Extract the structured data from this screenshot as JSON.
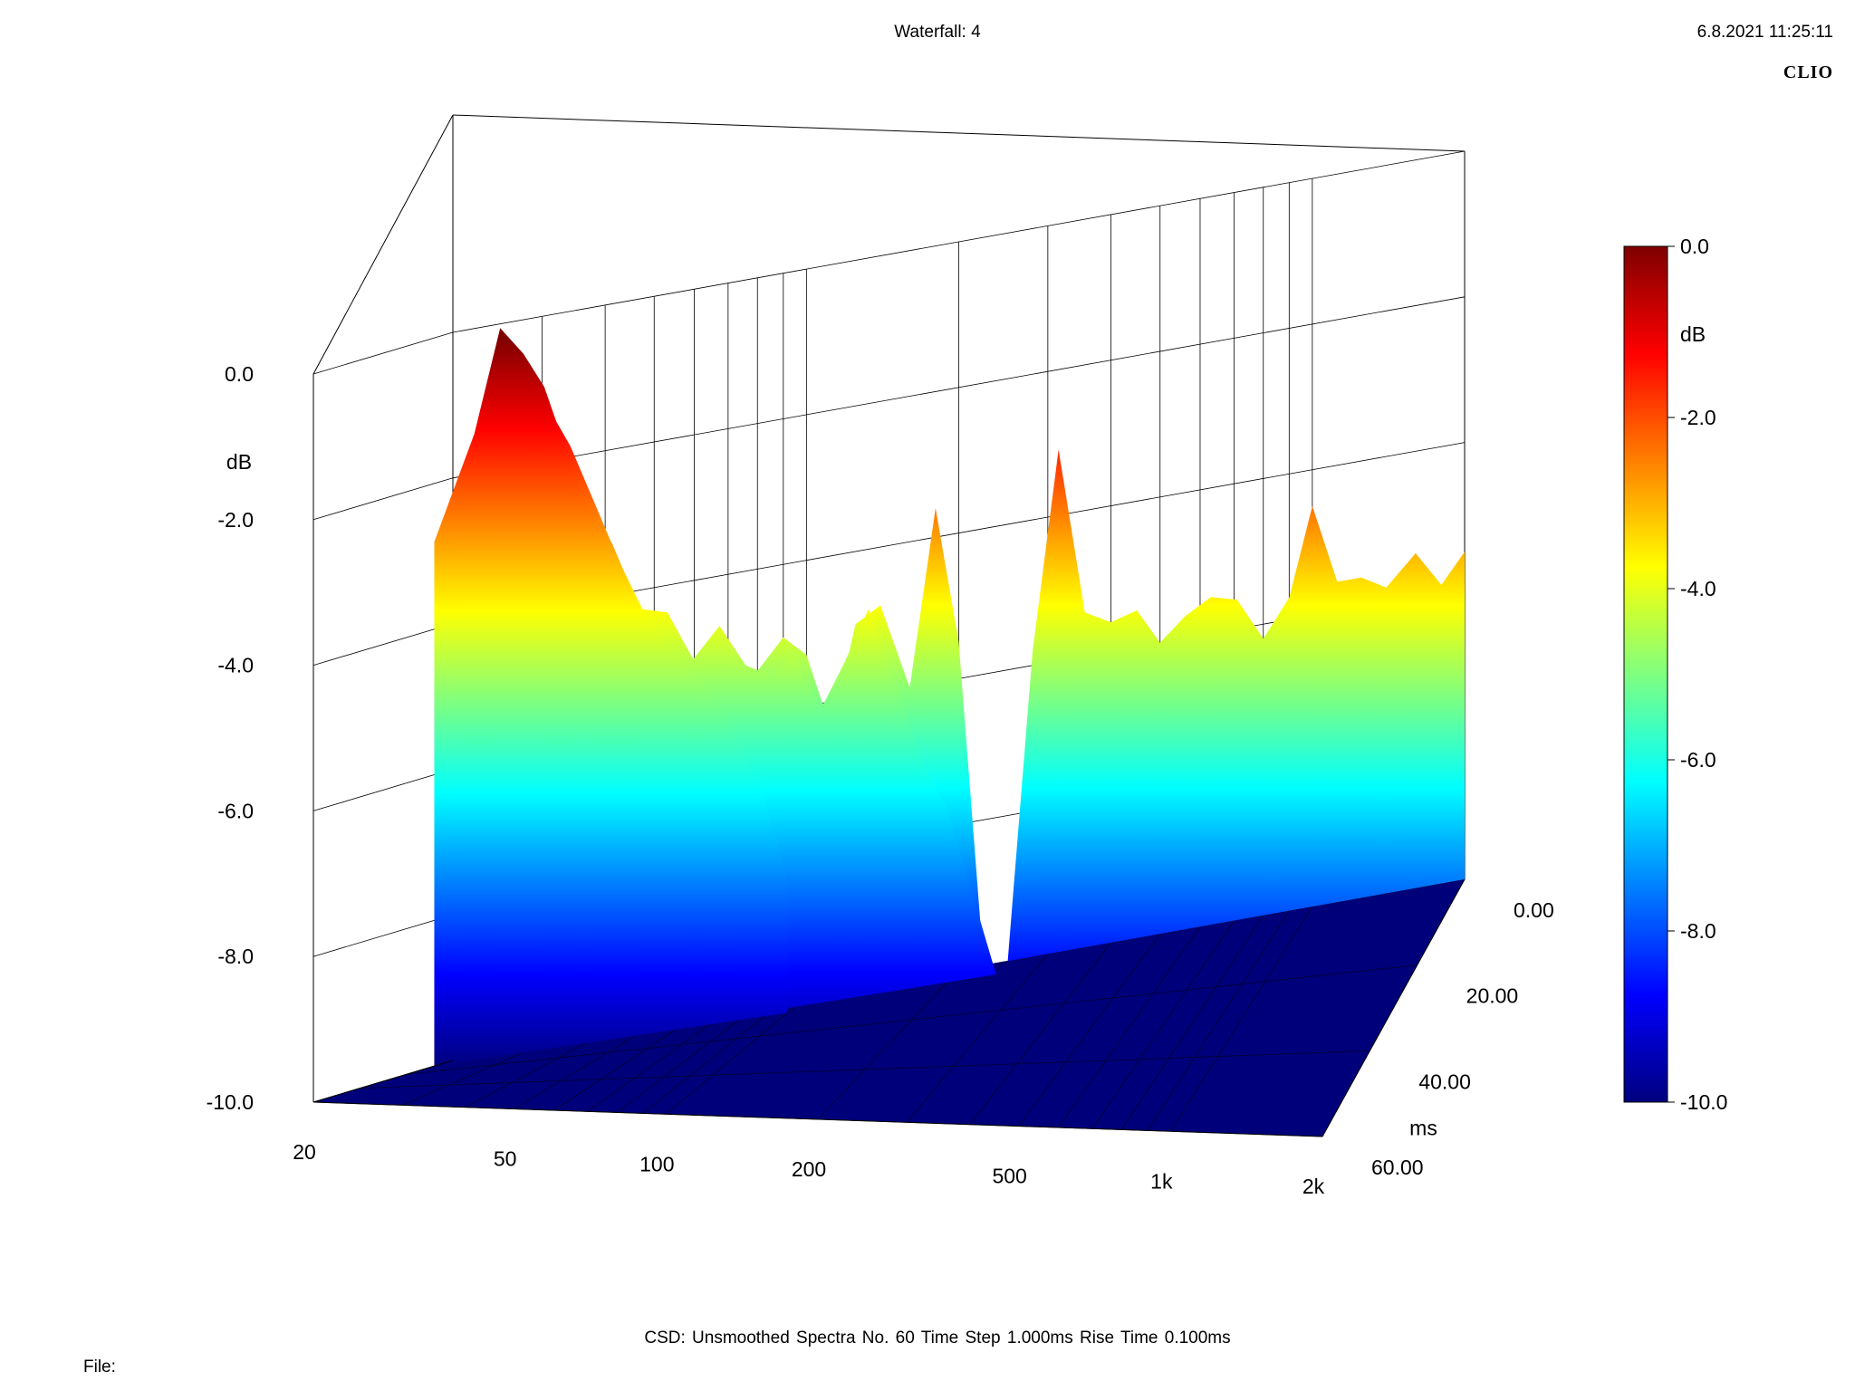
{
  "header": {
    "title": "Waterfall: 4",
    "timestamp": "6.8.2021 11:25:11",
    "brand": "CLIO"
  },
  "footer": {
    "info": "CSD:   Unsmoothed   Spectra No. 60   Time Step 1.000ms   Rise Time 0.100ms",
    "file_label": "File:"
  },
  "colors": {
    "scale": [
      "#00007f",
      "#0000ff",
      "#007fff",
      "#00ffff",
      "#7fff7f",
      "#ffff00",
      "#ff7f00",
      "#ff0000",
      "#7f0000"
    ],
    "floor": "#00007a"
  },
  "chart_data": {
    "type": "waterfall",
    "title": "Waterfall: 4",
    "subtitle": "CSD:   Unsmoothed   Spectra No. 60   Time Step 1.000ms   Rise Time 0.100ms",
    "xlabel": "",
    "ylabel": "dB",
    "zlabel": "ms",
    "x_scale": "log",
    "xlim": [
      20,
      2000
    ],
    "ylim": [
      -10,
      0
    ],
    "zlim": [
      0,
      60
    ],
    "x_ticks": [
      20,
      50,
      100,
      200,
      500,
      1000,
      2000
    ],
    "x_tick_labels": [
      "20",
      "50",
      "100",
      "200",
      "500",
      "1k",
      "2k"
    ],
    "y_ticks": [
      0,
      -2,
      -4,
      -6,
      -8,
      -10
    ],
    "y_tick_labels": [
      "0.0",
      "-2.0",
      "-4.0",
      "-6.0",
      "-8.0",
      "-10.0"
    ],
    "z_ticks": [
      0,
      20,
      40,
      60
    ],
    "z_tick_labels": [
      "0.00",
      "20.00",
      "40.00",
      "60.00"
    ],
    "colorbar": {
      "range": [
        -10,
        0
      ],
      "ticks": [
        0,
        -2,
        -4,
        -6,
        -8,
        -10
      ],
      "tick_labels": [
        "0.0",
        "-2.0",
        "-4.0",
        "-6.0",
        "-8.0",
        "-10.0"
      ],
      "label": "dB"
    },
    "grid": true,
    "series": [
      {
        "time_ms": 0,
        "freq": [
          20,
          22,
          24,
          27,
          30,
          33,
          36,
          40,
          45,
          50,
          56,
          63,
          71,
          80,
          90,
          100,
          112,
          125,
          140,
          160,
          180,
          200,
          224,
          250,
          280,
          315,
          355,
          400,
          450,
          500,
          560,
          630,
          710,
          800,
          900,
          1000,
          1120,
          1250,
          1400,
          1600,
          1800,
          2000
        ],
        "level": [
          -4.8,
          -4.6,
          -4.3,
          -3.6,
          -3.6,
          -4.0,
          -4.8,
          -5.2,
          -5.4,
          -5.8,
          -6.0,
          -5.6,
          -5.2,
          -5.4,
          -5.0,
          -5.3,
          -6.4,
          -5.0,
          -4.8,
          -6.0,
          -3.6,
          -5.5,
          -10.0,
          -10.0,
          -5.8,
          -3.1,
          -5.4,
          -5.6,
          -5.5,
          -6.0,
          -5.7,
          -5.5,
          -5.6,
          -6.2,
          -5.7,
          -4.5,
          -5.6,
          -5.6,
          -5.8,
          -5.4,
          -5.9,
          -5.5
        ]
      },
      {
        "time_ms": 5,
        "freq": [
          20,
          24,
          27,
          30,
          33,
          36,
          40,
          45,
          50,
          56,
          63,
          71,
          80,
          90,
          100,
          112,
          125,
          140,
          160,
          180,
          200,
          250,
          315
        ],
        "level": [
          -4.0,
          -3.0,
          -2.2,
          -0.8,
          -1.3,
          -1.8,
          -2.6,
          -3.5,
          -4.2,
          -4.3,
          -5.0,
          -4.6,
          -5.2,
          -5.4,
          -5.2,
          -6.0,
          -5.4,
          -4.7,
          -5.9,
          -7.0,
          -7.6,
          -10.0,
          -10.0
        ]
      },
      {
        "time_ms": 8,
        "freq": [
          20,
          24,
          27,
          30,
          33,
          36,
          40,
          45,
          50,
          56,
          63,
          71,
          80,
          90,
          100
        ],
        "level": [
          -2.8,
          -1.4,
          -0.0,
          -0.4,
          -0.9,
          -1.7,
          -2.6,
          -3.2,
          -4.0,
          -4.6,
          -5.0,
          -5.5,
          -6.2,
          -7.0,
          -8.2
        ]
      }
    ]
  }
}
